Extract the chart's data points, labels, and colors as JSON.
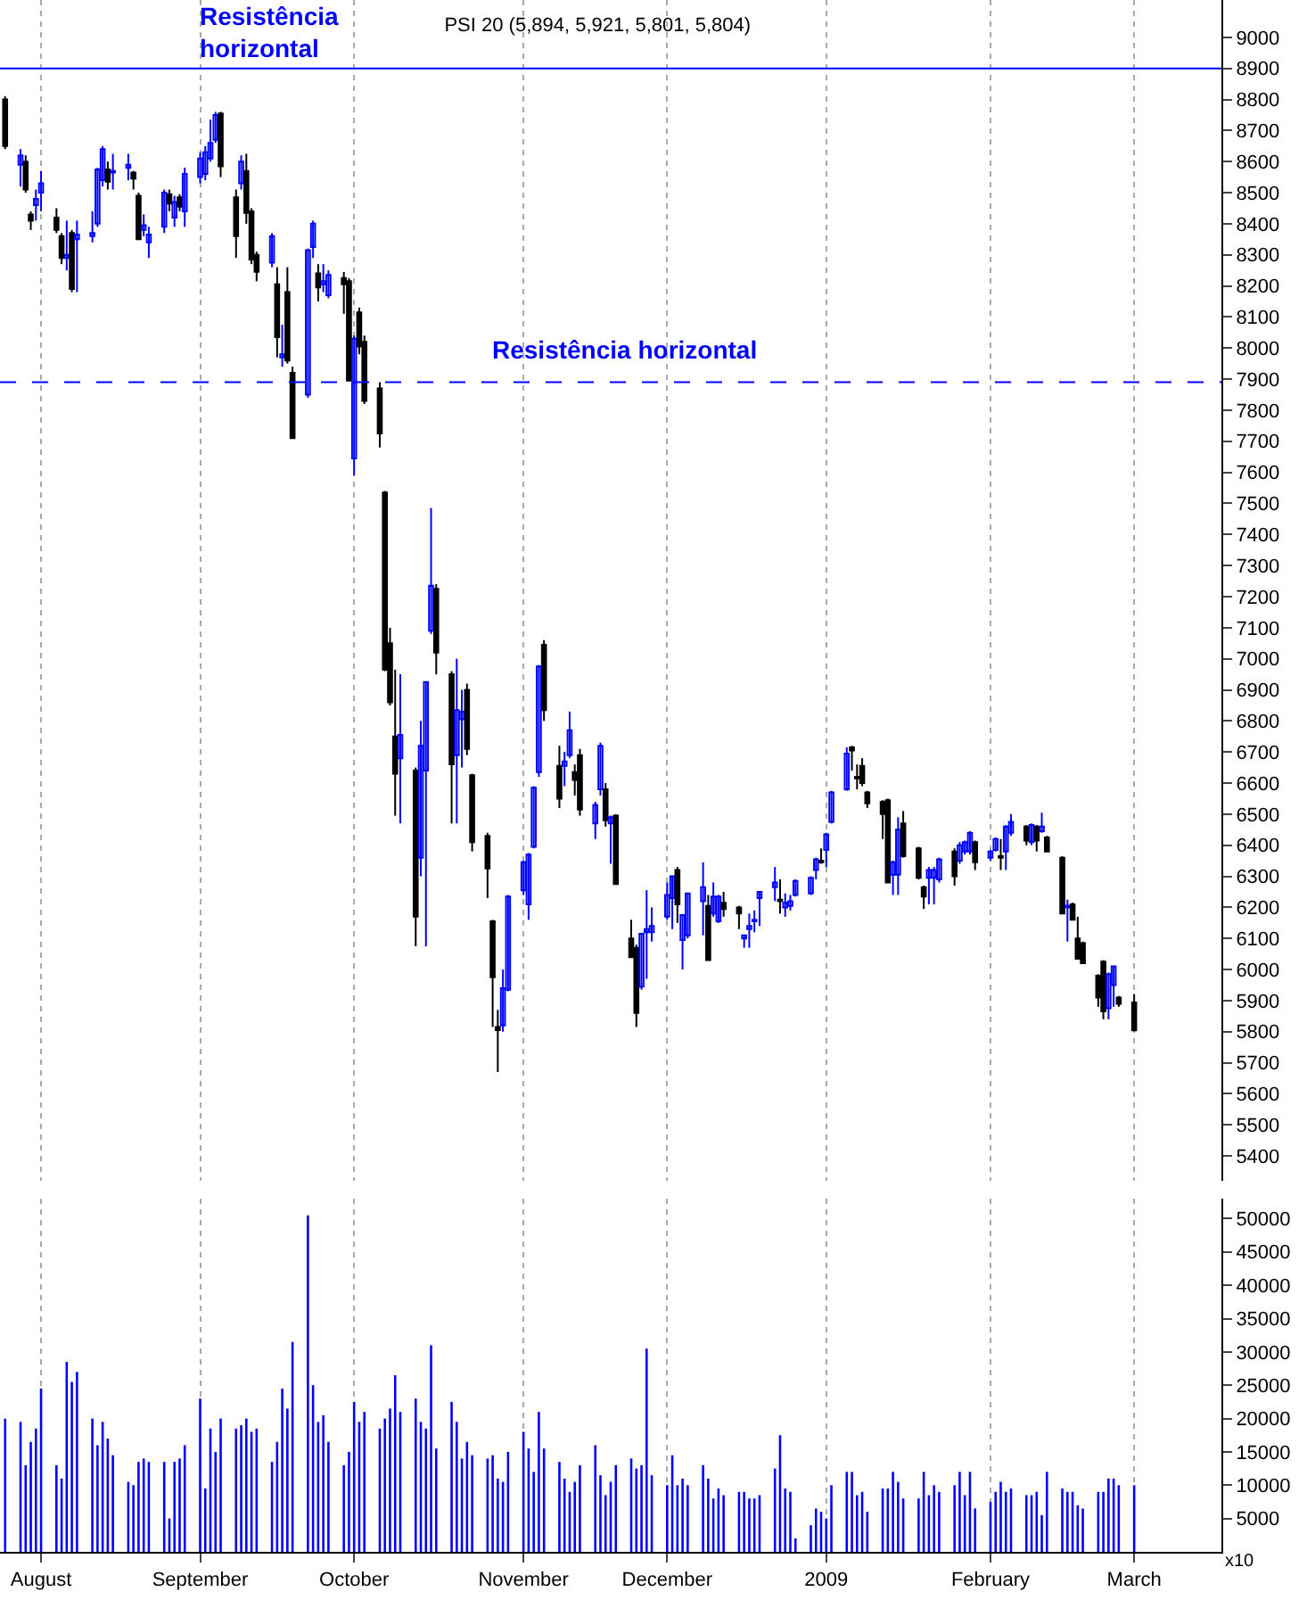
{
  "chart_data": [
    {
      "type": "candlestick",
      "title": "PSI 20 (5,894, 5,921, 5,801, 5,804)",
      "colors": [
        "#000000",
        "#0000ff",
        "#000000",
        "#000000",
        "#0000ff",
        "#0000ff",
        "#000000",
        "#000000",
        "#0000ff",
        "#000000",
        "#0000ff",
        "#0000ff",
        "#0000ff",
        "#0000ff",
        "#000000",
        "#0000ff",
        "#0000ff",
        "#000000",
        "#000000",
        "#0000ff",
        "#0000ff",
        "#0000ff",
        "#000000",
        "#0000ff",
        "#000000",
        "#0000ff",
        "#0000ff",
        "#0000ff",
        "#0000ff",
        "#0000ff",
        "#000000",
        "#000000",
        "#0000ff",
        "#000000",
        "#000000",
        "#000000",
        "#0000ff",
        "#000000",
        "#0000ff",
        "#000000",
        "#000000",
        "#0000ff",
        "#0000ff",
        "#000000",
        "#0000ff",
        "#0000ff",
        "#000000",
        "#000000",
        "#0000ff",
        "#000000",
        "#000000",
        "#000000",
        "#000000",
        "#000000",
        "#000000",
        "#0000ff",
        "#000000",
        "#0000ff",
        "#0000ff",
        "#0000ff",
        "#000000",
        "#000000",
        "#0000ff",
        "#0000ff",
        "#000000",
        "#000000",
        "#000000",
        "#000000",
        "#000000",
        "#0000ff",
        "#0000ff",
        "#0000ff",
        "#0000ff",
        "#0000ff",
        "#0000ff",
        "#000000",
        "#000000",
        "#0000ff",
        "#0000ff",
        "#000000",
        "#000000",
        "#0000ff",
        "#0000ff",
        "#000000",
        "#0000ff",
        "#000000",
        "#000000",
        "#000000",
        "#0000ff",
        "#0000ff",
        "#0000ff",
        "#0000ff",
        "#0000ff",
        "#000000",
        "#0000ff",
        "#0000ff",
        "#0000ff",
        "#000000",
        "#0000ff",
        "#0000ff",
        "#000000",
        "#000000",
        "#0000ff",
        "#0000ff",
        "#0000ff",
        "#0000ff",
        "#0000ff",
        "#000000",
        "#0000ff",
        "#0000ff",
        "#0000ff",
        "#0000ff",
        "#0000ff",
        "#000000",
        "#0000ff",
        "#0000ff",
        "#0000ff",
        "#000000",
        "#000000",
        "#000000",
        "#000000",
        "#000000",
        "#000000",
        "#0000ff",
        "#0000ff",
        "#000000",
        "#000000",
        "#000000",
        "#0000ff",
        "#0000ff",
        "#0000ff",
        "#000000",
        "#0000ff",
        "#0000ff",
        "#0000ff",
        "#000000",
        "#0000ff",
        "#0000ff",
        "#000000",
        "#0000ff",
        "#0000ff",
        "#000000",
        "#0000ff",
        "#000000",
        "#0000ff",
        "#000000",
        "#000000",
        "#0000ff",
        "#000000",
        "#000000",
        "#000000",
        "#000000",
        "#000000",
        "#0000ff",
        "#0000ff",
        "#000000",
        "#000000"
      ],
      "x": [
        "2008-07-25",
        "2008-07-28",
        "2008-07-29",
        "2008-07-30",
        "2008-07-31",
        "2008-08-01",
        "2008-08-04",
        "2008-08-05",
        "2008-08-06",
        "2008-08-07",
        "2008-08-08",
        "2008-08-11",
        "2008-08-12",
        "2008-08-13",
        "2008-08-14",
        "2008-08-15",
        "2008-08-18",
        "2008-08-19",
        "2008-08-20",
        "2008-08-21",
        "2008-08-22",
        "2008-08-25",
        "2008-08-26",
        "2008-08-27",
        "2008-08-28",
        "2008-08-29",
        "2008-09-01",
        "2008-09-02",
        "2008-09-03",
        "2008-09-04",
        "2008-09-05",
        "2008-09-08",
        "2008-09-09",
        "2008-09-10",
        "2008-09-11",
        "2008-09-12",
        "2008-09-15",
        "2008-09-16",
        "2008-09-17",
        "2008-09-18",
        "2008-09-19",
        "2008-09-22",
        "2008-09-23",
        "2008-09-24",
        "2008-09-25",
        "2008-09-26",
        "2008-09-29",
        "2008-09-30",
        "2008-10-01",
        "2008-10-02",
        "2008-10-03",
        "2008-10-06",
        "2008-10-07",
        "2008-10-08",
        "2008-10-09",
        "2008-10-10",
        "2008-10-13",
        "2008-10-14",
        "2008-10-15",
        "2008-10-16",
        "2008-10-17",
        "2008-10-20",
        "2008-10-21",
        "2008-10-22",
        "2008-10-23",
        "2008-10-24",
        "2008-10-27",
        "2008-10-28",
        "2008-10-29",
        "2008-10-30",
        "2008-10-31",
        "2008-11-03",
        "2008-11-04",
        "2008-11-05",
        "2008-11-06",
        "2008-11-07",
        "2008-11-10",
        "2008-11-11",
        "2008-11-12",
        "2008-11-13",
        "2008-11-14",
        "2008-11-17",
        "2008-11-18",
        "2008-11-19",
        "2008-11-20",
        "2008-11-21",
        "2008-11-24",
        "2008-11-25",
        "2008-11-26",
        "2008-11-27",
        "2008-11-28",
        "2008-12-01",
        "2008-12-02",
        "2008-12-03",
        "2008-12-04",
        "2008-12-05",
        "2008-12-08",
        "2008-12-09",
        "2008-12-10",
        "2008-12-11",
        "2008-12-12",
        "2008-12-15",
        "2008-12-16",
        "2008-12-17",
        "2008-12-18",
        "2008-12-19",
        "2008-12-22",
        "2008-12-23",
        "2008-12-24",
        "2008-12-25",
        "2008-12-26",
        "2008-12-29",
        "2008-12-30",
        "2008-12-31",
        "2009-01-01",
        "2009-01-02",
        "2009-01-05",
        "2009-01-06",
        "2009-01-07",
        "2009-01-08",
        "2009-01-09",
        "2009-01-12",
        "2009-01-13",
        "2009-01-14",
        "2009-01-15",
        "2009-01-16",
        "2009-01-19",
        "2009-01-20",
        "2009-01-21",
        "2009-01-22",
        "2009-01-23",
        "2009-01-26",
        "2009-01-27",
        "2009-01-28",
        "2009-01-29",
        "2009-01-30",
        "2009-02-02",
        "2009-02-03",
        "2009-02-04",
        "2009-02-05",
        "2009-02-06",
        "2009-02-09",
        "2009-02-10",
        "2009-02-11",
        "2009-02-12",
        "2009-02-13",
        "2009-02-16",
        "2009-02-17",
        "2009-02-18",
        "2009-02-19",
        "2009-02-20",
        "2009-02-23",
        "2009-02-24",
        "2009-02-25",
        "2009-02-26",
        "2009-02-27",
        "2009-03-02"
      ],
      "ohlc": [
        [
          8800,
          8810,
          8640,
          8650
        ],
        [
          8590,
          8640,
          8520,
          8620
        ],
        [
          8600,
          8620,
          8500,
          8510
        ],
        [
          8430,
          8440,
          8380,
          8410
        ],
        [
          8460,
          8510,
          8410,
          8480
        ],
        [
          8500,
          8570,
          8440,
          8530
        ],
        [
          8420,
          8450,
          8370,
          8380
        ],
        [
          8360,
          8370,
          8270,
          8290
        ],
        [
          8290,
          8410,
          8250,
          8300
        ],
        [
          8370,
          8380,
          8180,
          8190
        ],
        [
          8350,
          8410,
          8180,
          8365
        ],
        [
          8360,
          8440,
          8340,
          8370
        ],
        [
          8400,
          8580,
          8390,
          8575
        ],
        [
          8540,
          8650,
          8520,
          8640
        ],
        [
          8575,
          8600,
          8510,
          8535
        ],
        [
          8565,
          8625,
          8510,
          8570
        ],
        [
          8580,
          8625,
          8540,
          8590
        ],
        [
          8565,
          8570,
          8510,
          8545
        ],
        [
          8490,
          8500,
          8350,
          8350
        ],
        [
          8380,
          8430,
          8360,
          8395
        ],
        [
          8340,
          8390,
          8290,
          8365
        ],
        [
          8390,
          8510,
          8370,
          8500
        ],
        [
          8495,
          8510,
          8440,
          8465
        ],
        [
          8420,
          8490,
          8390,
          8470
        ],
        [
          8485,
          8495,
          8440,
          8455
        ],
        [
          8440,
          8580,
          8390,
          8560
        ],
        [
          8550,
          8630,
          8530,
          8610
        ],
        [
          8560,
          8650,
          8540,
          8630
        ],
        [
          8610,
          8735,
          8600,
          8660
        ],
        [
          8670,
          8760,
          8660,
          8750
        ],
        [
          8755,
          8760,
          8550,
          8585
        ],
        [
          8485,
          8510,
          8290,
          8360
        ],
        [
          8530,
          8620,
          8510,
          8600
        ],
        [
          8570,
          8625,
          8400,
          8435
        ],
        [
          8440,
          8450,
          8270,
          8285
        ],
        [
          8300,
          8310,
          8215,
          8245
        ],
        [
          8275,
          8370,
          8260,
          8360
        ],
        [
          8205,
          8260,
          7970,
          8035
        ],
        [
          7970,
          8075,
          7940,
          7980
        ],
        [
          8180,
          8260,
          7950,
          7960
        ],
        [
          7920,
          7940,
          7710,
          7710
        ],
        [
          7850,
          8320,
          7840,
          8315
        ],
        [
          8325,
          8410,
          8290,
          8400
        ],
        [
          8240,
          8270,
          8150,
          8195
        ],
        [
          8205,
          8270,
          8180,
          8215
        ],
        [
          8170,
          8250,
          8160,
          8235
        ],
        [
          8225,
          8245,
          8110,
          8205
        ],
        [
          8215,
          8225,
          7895,
          7895
        ],
        [
          7645,
          8040,
          7590,
          8030
        ],
        [
          8115,
          8130,
          7980,
          8005
        ],
        [
          8020,
          8040,
          7820,
          7830
        ],
        [
          7870,
          7890,
          7680,
          7725
        ],
        [
          7535,
          7540,
          6960,
          6965
        ],
        [
          7050,
          7100,
          6850,
          6860
        ],
        [
          6750,
          6965,
          6495,
          6630
        ],
        [
          6680,
          6950,
          6470,
          6755
        ],
        [
          6640,
          6650,
          6075,
          6170
        ],
        [
          6360,
          6800,
          6300,
          6720
        ],
        [
          6640,
          6925,
          6075,
          6925
        ],
        [
          7090,
          7485,
          7080,
          7235
        ],
        [
          7225,
          7240,
          6950,
          7020
        ],
        [
          6950,
          6960,
          6470,
          6660
        ],
        [
          6690,
          7000,
          6470,
          6835
        ],
        [
          6805,
          6900,
          6650,
          6830
        ],
        [
          6900,
          6920,
          6690,
          6710
        ],
        [
          6625,
          6630,
          6380,
          6410
        ],
        [
          6430,
          6440,
          6230,
          6325
        ],
        [
          6155,
          6160,
          5815,
          5975
        ],
        [
          5815,
          5870,
          5670,
          5805
        ],
        [
          5820,
          6000,
          5800,
          5940
        ],
        [
          5935,
          6240,
          5930,
          6235
        ],
        [
          6255,
          6350,
          6240,
          6345
        ],
        [
          6210,
          6375,
          6160,
          6370
        ],
        [
          6395,
          6590,
          6390,
          6585
        ],
        [
          6635,
          6980,
          6620,
          6975
        ],
        [
          7045,
          7060,
          6800,
          6835
        ],
        [
          6655,
          6720,
          6520,
          6550
        ],
        [
          6655,
          6700,
          6590,
          6670
        ],
        [
          6690,
          6830,
          6680,
          6770
        ],
        [
          6635,
          6660,
          6560,
          6610
        ],
        [
          6690,
          6710,
          6495,
          6515
        ],
        [
          6470,
          6540,
          6420,
          6530
        ],
        [
          6580,
          6730,
          6560,
          6720
        ],
        [
          6580,
          6600,
          6460,
          6480
        ],
        [
          6470,
          6495,
          6340,
          6490
        ],
        [
          6495,
          6500,
          6275,
          6275
        ],
        [
          6100,
          6160,
          6040,
          6040
        ],
        [
          6070,
          6080,
          5815,
          5860
        ],
        [
          5945,
          6115,
          5935,
          6115
        ],
        [
          6120,
          6255,
          5970,
          6130
        ],
        [
          6120,
          6200,
          6090,
          6140
        ],
        [
          6170,
          6280,
          6160,
          6240
        ],
        [
          6230,
          6300,
          6130,
          6300
        ],
        [
          6320,
          6330,
          6150,
          6210
        ],
        [
          6095,
          6175,
          6000,
          6175
        ],
        [
          6110,
          6245,
          6100,
          6245
        ],
        [
          6220,
          6345,
          6110,
          6265
        ],
        [
          6205,
          6240,
          6030,
          6030
        ],
        [
          6180,
          6280,
          6170,
          6235
        ],
        [
          6155,
          6240,
          6150,
          6235
        ],
        [
          6215,
          6250,
          6170,
          6195
        ],
        [
          6200,
          6205,
          6130,
          6180
        ],
        [
          6100,
          6110,
          6070,
          6110
        ],
        [
          6130,
          6180,
          6070,
          6140
        ],
        [
          6155,
          6190,
          6120,
          6160
        ],
        [
          6230,
          6250,
          6140,
          6250
        ],
        [
          6265,
          6330,
          6220,
          6280
        ],
        [
          6225,
          6290,
          6180,
          6220
        ],
        [
          6200,
          6245,
          6170,
          6215
        ],
        [
          6205,
          6240,
          6190,
          6220
        ],
        [
          6240,
          6290,
          6235,
          6285
        ],
        [
          6245,
          6300,
          6240,
          6295
        ],
        [
          6320,
          6360,
          6290,
          6355
        ],
        [
          6350,
          6390,
          6340,
          6345
        ],
        [
          6385,
          6440,
          6330,
          6435
        ],
        [
          6475,
          6575,
          6470,
          6570
        ],
        [
          6580,
          6715,
          6575,
          6695
        ],
        [
          6715,
          6720,
          6640,
          6705
        ],
        [
          6620,
          6660,
          6580,
          6615
        ],
        [
          6655,
          6680,
          6590,
          6600
        ],
        [
          6570,
          6575,
          6520,
          6535
        ],
        [
          6540,
          6545,
          6420,
          6500
        ],
        [
          6545,
          6550,
          6280,
          6280
        ],
        [
          6305,
          6350,
          6240,
          6345
        ],
        [
          6305,
          6490,
          6240,
          6450
        ],
        [
          6470,
          6510,
          6360,
          6365
        ],
        [
          6390,
          6395,
          6290,
          6295
        ],
        [
          6265,
          6270,
          6195,
          6235
        ],
        [
          6295,
          6330,
          6210,
          6320
        ],
        [
          6295,
          6330,
          6210,
          6320
        ],
        [
          6290,
          6360,
          6280,
          6355
        ],
        [
          6380,
          6390,
          6270,
          6300
        ],
        [
          6350,
          6410,
          6340,
          6400
        ],
        [
          6380,
          6415,
          6370,
          6410
        ],
        [
          6380,
          6445,
          6370,
          6440
        ],
        [
          6410,
          6415,
          6320,
          6345
        ],
        [
          6360,
          6385,
          6350,
          6380
        ],
        [
          6385,
          6425,
          6380,
          6420
        ],
        [
          6365,
          6420,
          6320,
          6360
        ],
        [
          6380,
          6465,
          6320,
          6460
        ],
        [
          6440,
          6500,
          6430,
          6475
        ],
        [
          6460,
          6465,
          6400,
          6415
        ],
        [
          6410,
          6470,
          6400,
          6465
        ],
        [
          6460,
          6465,
          6380,
          6415
        ],
        [
          6445,
          6505,
          6440,
          6460
        ],
        [
          6425,
          6430,
          6380,
          6380
        ],
        [
          6360,
          6365,
          6180,
          6180
        ],
        [
          6200,
          6225,
          6090,
          6205
        ],
        [
          6210,
          6215,
          6160,
          6160
        ],
        [
          6100,
          6170,
          6035,
          6035
        ],
        [
          6085,
          6090,
          6020,
          6020
        ],
        [
          5980,
          5985,
          5880,
          5910
        ],
        [
          6025,
          6030,
          5840,
          5865
        ],
        [
          5875,
          5990,
          5840,
          5985
        ],
        [
          5950,
          6010,
          5880,
          6010
        ],
        [
          5910,
          5915,
          5880,
          5890
        ],
        [
          5894,
          5921,
          5801,
          5804
        ]
      ],
      "xlim": [
        "2008-07-24",
        "2009-03-19"
      ],
      "xticks": [
        {
          "value": "2008-08-01",
          "label": null
        },
        {
          "value": "2008-09-01",
          "label": null
        },
        {
          "value": "2008-10-01",
          "label": null
        },
        {
          "value": "2008-11-03",
          "label": null
        },
        {
          "value": "2008-12-01",
          "label": null
        },
        {
          "value": "2009-01-01",
          "label": null
        },
        {
          "value": "2009-02-02",
          "label": null
        },
        {
          "value": "2009-03-02",
          "label": null
        }
      ],
      "ylim": [
        5320,
        9120
      ],
      "yticks": [
        5400,
        5500,
        5600,
        5700,
        5800,
        5900,
        6000,
        6100,
        6200,
        6300,
        6400,
        6500,
        6600,
        6700,
        6800,
        6900,
        7000,
        7100,
        7200,
        7300,
        7400,
        7500,
        7600,
        7700,
        7800,
        7900,
        8000,
        8100,
        8200,
        8300,
        8400,
        8500,
        8600,
        8700,
        8800,
        8900,
        9000
      ],
      "ref_lines": [
        {
          "axis": "y",
          "value": 8900,
          "label": "Resistência\nhorizontal",
          "color": "#0000ff",
          "line_style": "solid"
        },
        {
          "axis": "y",
          "value": 7890,
          "label": "Resistência horizontal",
          "color": "#0000ff",
          "line_style": "dashed"
        }
      ],
      "grid": "x",
      "tick_labels": "y"
    },
    {
      "type": "bar",
      "color": "#0000ff",
      "x": [
        "2008-07-25",
        "2008-07-28",
        "2008-07-29",
        "2008-07-30",
        "2008-07-31",
        "2008-08-01",
        "2008-08-04",
        "2008-08-05",
        "2008-08-06",
        "2008-08-07",
        "2008-08-08",
        "2008-08-11",
        "2008-08-12",
        "2008-08-13",
        "2008-08-14",
        "2008-08-15",
        "2008-08-18",
        "2008-08-19",
        "2008-08-20",
        "2008-08-21",
        "2008-08-22",
        "2008-08-25",
        "2008-08-26",
        "2008-08-27",
        "2008-08-28",
        "2008-08-29",
        "2008-09-01",
        "2008-09-02",
        "2008-09-03",
        "2008-09-04",
        "2008-09-05",
        "2008-09-08",
        "2008-09-09",
        "2008-09-10",
        "2008-09-11",
        "2008-09-12",
        "2008-09-15",
        "2008-09-16",
        "2008-09-17",
        "2008-09-18",
        "2008-09-19",
        "2008-09-22",
        "2008-09-23",
        "2008-09-24",
        "2008-09-25",
        "2008-09-26",
        "2008-09-29",
        "2008-09-30",
        "2008-10-01",
        "2008-10-02",
        "2008-10-03",
        "2008-10-06",
        "2008-10-07",
        "2008-10-08",
        "2008-10-09",
        "2008-10-10",
        "2008-10-13",
        "2008-10-14",
        "2008-10-15",
        "2008-10-16",
        "2008-10-17",
        "2008-10-20",
        "2008-10-21",
        "2008-10-22",
        "2008-10-23",
        "2008-10-24",
        "2008-10-27",
        "2008-10-28",
        "2008-10-29",
        "2008-10-30",
        "2008-10-31",
        "2008-11-03",
        "2008-11-04",
        "2008-11-05",
        "2008-11-06",
        "2008-11-07",
        "2008-11-10",
        "2008-11-11",
        "2008-11-12",
        "2008-11-13",
        "2008-11-14",
        "2008-11-17",
        "2008-11-18",
        "2008-11-19",
        "2008-11-20",
        "2008-11-21",
        "2008-11-24",
        "2008-11-25",
        "2008-11-26",
        "2008-11-27",
        "2008-11-28",
        "2008-12-01",
        "2008-12-02",
        "2008-12-03",
        "2008-12-04",
        "2008-12-05",
        "2008-12-08",
        "2008-12-09",
        "2008-12-10",
        "2008-12-11",
        "2008-12-12",
        "2008-12-15",
        "2008-12-16",
        "2008-12-17",
        "2008-12-18",
        "2008-12-19",
        "2008-12-22",
        "2008-12-23",
        "2008-12-24",
        "2008-12-25",
        "2008-12-26",
        "2008-12-29",
        "2008-12-30",
        "2008-12-31",
        "2009-01-01",
        "2009-01-02",
        "2009-01-05",
        "2009-01-06",
        "2009-01-07",
        "2009-01-08",
        "2009-01-09",
        "2009-01-12",
        "2009-01-13",
        "2009-01-14",
        "2009-01-15",
        "2009-01-16",
        "2009-01-19",
        "2009-01-20",
        "2009-01-21",
        "2009-01-22",
        "2009-01-23",
        "2009-01-26",
        "2009-01-27",
        "2009-01-28",
        "2009-01-29",
        "2009-01-30",
        "2009-02-02",
        "2009-02-03",
        "2009-02-04",
        "2009-02-05",
        "2009-02-06",
        "2009-02-09",
        "2009-02-10",
        "2009-02-11",
        "2009-02-12",
        "2009-02-13",
        "2009-02-16",
        "2009-02-17",
        "2009-02-18",
        "2009-02-19",
        "2009-02-20",
        "2009-02-23",
        "2009-02-24",
        "2009-02-25",
        "2009-02-26",
        "2009-02-27",
        "2009-03-02"
      ],
      "values": [
        20000,
        19500,
        13000,
        16500,
        18500,
        24500,
        13000,
        11000,
        28500,
        25500,
        27000,
        20000,
        16000,
        19500,
        17000,
        14500,
        10500,
        10000,
        13500,
        14000,
        13500,
        13500,
        5000,
        13500,
        14000,
        16000,
        23000,
        9500,
        18500,
        15000,
        20000,
        18500,
        19000,
        20000,
        18000,
        18500,
        13500,
        16500,
        24500,
        21500,
        31500,
        50500,
        25000,
        19500,
        20500,
        16500,
        13000,
        15000,
        22500,
        19500,
        21000,
        18500,
        20000,
        21500,
        26500,
        21000,
        23000,
        19500,
        18500,
        31000,
        15500,
        22500,
        19500,
        14000,
        16500,
        14500,
        14000,
        14500,
        11000,
        10500,
        15000,
        18000,
        15500,
        12000,
        21000,
        15500,
        13500,
        11000,
        9000,
        10500,
        13000,
        16000,
        11500,
        8500,
        10500,
        13000,
        14000,
        12500,
        13000,
        30500,
        11500,
        10000,
        14500,
        10000,
        11000,
        10000,
        13000,
        11000,
        8000,
        9500,
        8500,
        9000,
        9000,
        8000,
        8000,
        8500,
        12500,
        17500,
        9500,
        9000,
        2000,
        4000,
        6500,
        6000,
        5000,
        10000,
        12000,
        12000,
        8500,
        9000,
        6000,
        9500,
        9500,
        12000,
        10500,
        8000,
        8000,
        12000,
        8500,
        10000,
        9000,
        10000,
        12000,
        8500,
        12000,
        6500,
        7500,
        9000,
        10500,
        9000,
        9500,
        8500,
        8500,
        9000,
        5500,
        12000,
        9500,
        9000,
        9000,
        7000,
        6500,
        9000,
        9000,
        11000,
        11000,
        10000,
        10000
      ],
      "xlim": [
        "2008-07-24",
        "2009-03-19"
      ],
      "xticks": [
        {
          "value": "2008-08-01",
          "label": "August"
        },
        {
          "value": "2008-09-01",
          "label": "September"
        },
        {
          "value": "2008-10-01",
          "label": "October"
        },
        {
          "value": "2008-11-03",
          "label": "November"
        },
        {
          "value": "2008-12-01",
          "label": "December"
        },
        {
          "value": "2009-01-01",
          "label": "2009"
        },
        {
          "value": "2009-02-02",
          "label": "February"
        },
        {
          "value": "2009-03-02",
          "label": "March"
        }
      ],
      "ylim": [
        0,
        53000
      ],
      "yticks": [
        5000,
        10000,
        15000,
        20000,
        25000,
        30000,
        35000,
        40000,
        45000,
        50000
      ],
      "annotations": [
        "x10"
      ],
      "grid": "x"
    }
  ]
}
